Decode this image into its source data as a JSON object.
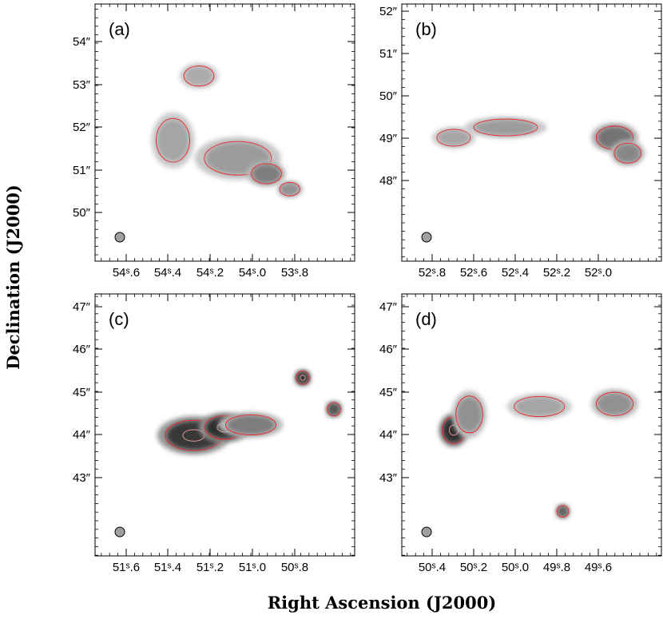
{
  "figure": {
    "xlabel": "Right Ascension (J2000)",
    "ylabel": "Declination (J2000)"
  },
  "chart_data": [
    {
      "type": "heatmap",
      "panel_label": "(a)",
      "x_ticks": [
        "54ˢ.6",
        "54ˢ.4",
        "54ˢ.2",
        "54ˢ.0",
        "53ˢ.8"
      ],
      "y_ticks": [
        "50″",
        "51″",
        "52″",
        "53″",
        "54″"
      ],
      "beam": true,
      "blobs": [
        {
          "x": 0.3,
          "y": 0.53,
          "rx": 20,
          "ry": 26,
          "v": 0.35
        },
        {
          "x": 0.4,
          "y": 0.28,
          "rx": 18,
          "ry": 12,
          "v": 0.32
        },
        {
          "x": 0.55,
          "y": 0.6,
          "rx": 40,
          "ry": 20,
          "v": 0.4
        },
        {
          "x": 0.66,
          "y": 0.66,
          "rx": 18,
          "ry": 12,
          "v": 0.55
        },
        {
          "x": 0.75,
          "y": 0.72,
          "rx": 12,
          "ry": 8,
          "v": 0.45
        }
      ]
    },
    {
      "type": "heatmap",
      "panel_label": "(b)",
      "x_ticks": [
        "52ˢ.8",
        "52ˢ.6",
        "52ˢ.4",
        "52ˢ.2",
        "52ˢ.0"
      ],
      "y_ticks": [
        "48″",
        "49″",
        "50″",
        "51″",
        "52″"
      ],
      "beam": true,
      "blobs": [
        {
          "x": 0.2,
          "y": 0.52,
          "rx": 20,
          "ry": 10,
          "v": 0.35
        },
        {
          "x": 0.4,
          "y": 0.48,
          "rx": 38,
          "ry": 10,
          "v": 0.4
        },
        {
          "x": 0.82,
          "y": 0.52,
          "rx": 22,
          "ry": 14,
          "v": 0.6
        },
        {
          "x": 0.87,
          "y": 0.58,
          "rx": 16,
          "ry": 12,
          "v": 0.5
        }
      ]
    },
    {
      "type": "heatmap",
      "panel_label": "(c)",
      "x_ticks": [
        "51ˢ.6",
        "51ˢ.4",
        "51ˢ.2",
        "51ˢ.0",
        "50ˢ.8"
      ],
      "y_ticks": [
        "43″",
        "44″",
        "45″",
        "46″",
        "47″"
      ],
      "beam": true,
      "blobs": [
        {
          "x": 0.38,
          "y": 0.54,
          "rx": 34,
          "ry": 18,
          "v": 0.9
        },
        {
          "x": 0.5,
          "y": 0.51,
          "rx": 24,
          "ry": 14,
          "v": 0.95
        },
        {
          "x": 0.6,
          "y": 0.5,
          "rx": 30,
          "ry": 12,
          "v": 0.55
        },
        {
          "x": 0.8,
          "y": 0.32,
          "rx": 8,
          "ry": 8,
          "v": 0.9
        },
        {
          "x": 0.92,
          "y": 0.44,
          "rx": 8,
          "ry": 8,
          "v": 0.75
        }
      ]
    },
    {
      "type": "heatmap",
      "panel_label": "(d)",
      "x_ticks": [
        "50ˢ.4",
        "50ˢ.2",
        "50ˢ.0",
        "49ˢ.8",
        "49ˢ.6"
      ],
      "y_ticks": [
        "43″",
        "44″",
        "45″",
        "46″",
        "47″"
      ],
      "beam": true,
      "blobs": [
        {
          "x": 0.2,
          "y": 0.52,
          "rx": 14,
          "ry": 16,
          "v": 0.95
        },
        {
          "x": 0.26,
          "y": 0.46,
          "rx": 16,
          "ry": 22,
          "v": 0.45
        },
        {
          "x": 0.53,
          "y": 0.43,
          "rx": 30,
          "ry": 12,
          "v": 0.35
        },
        {
          "x": 0.82,
          "y": 0.42,
          "rx": 22,
          "ry": 14,
          "v": 0.45
        },
        {
          "x": 0.62,
          "y": 0.83,
          "rx": 7,
          "ry": 7,
          "v": 0.7
        }
      ]
    }
  ]
}
